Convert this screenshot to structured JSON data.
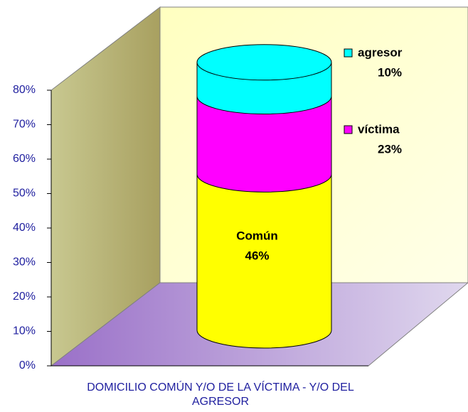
{
  "chart_data": {
    "type": "stacked-cylinder",
    "categories": [
      "DOMICILIO COMÚN Y/O DE LA VÍCTIMA - Y/O DEL AGRESOR"
    ],
    "series": [
      {
        "name": "Común",
        "color": "#ffff00",
        "values": [
          46
        ],
        "value_labels": [
          "46%"
        ]
      },
      {
        "name": "víctima",
        "color": "#ff00ff",
        "values": [
          23
        ],
        "value_labels": [
          "23%"
        ]
      },
      {
        "name": "agresor",
        "color": "#00ffff",
        "values": [
          10
        ],
        "value_labels": [
          "10%"
        ]
      }
    ],
    "ylim": [
      0,
      80
    ],
    "yticks": [
      {
        "value": 0,
        "label": "0%"
      },
      {
        "value": 10,
        "label": "10%"
      },
      {
        "value": 20,
        "label": "20%"
      },
      {
        "value": 30,
        "label": "30%"
      },
      {
        "value": 40,
        "label": "40%"
      },
      {
        "value": 50,
        "label": "50%"
      },
      {
        "value": 60,
        "label": "60%"
      },
      {
        "value": 70,
        "label": "70%"
      },
      {
        "value": 80,
        "label": "80%"
      }
    ]
  }
}
